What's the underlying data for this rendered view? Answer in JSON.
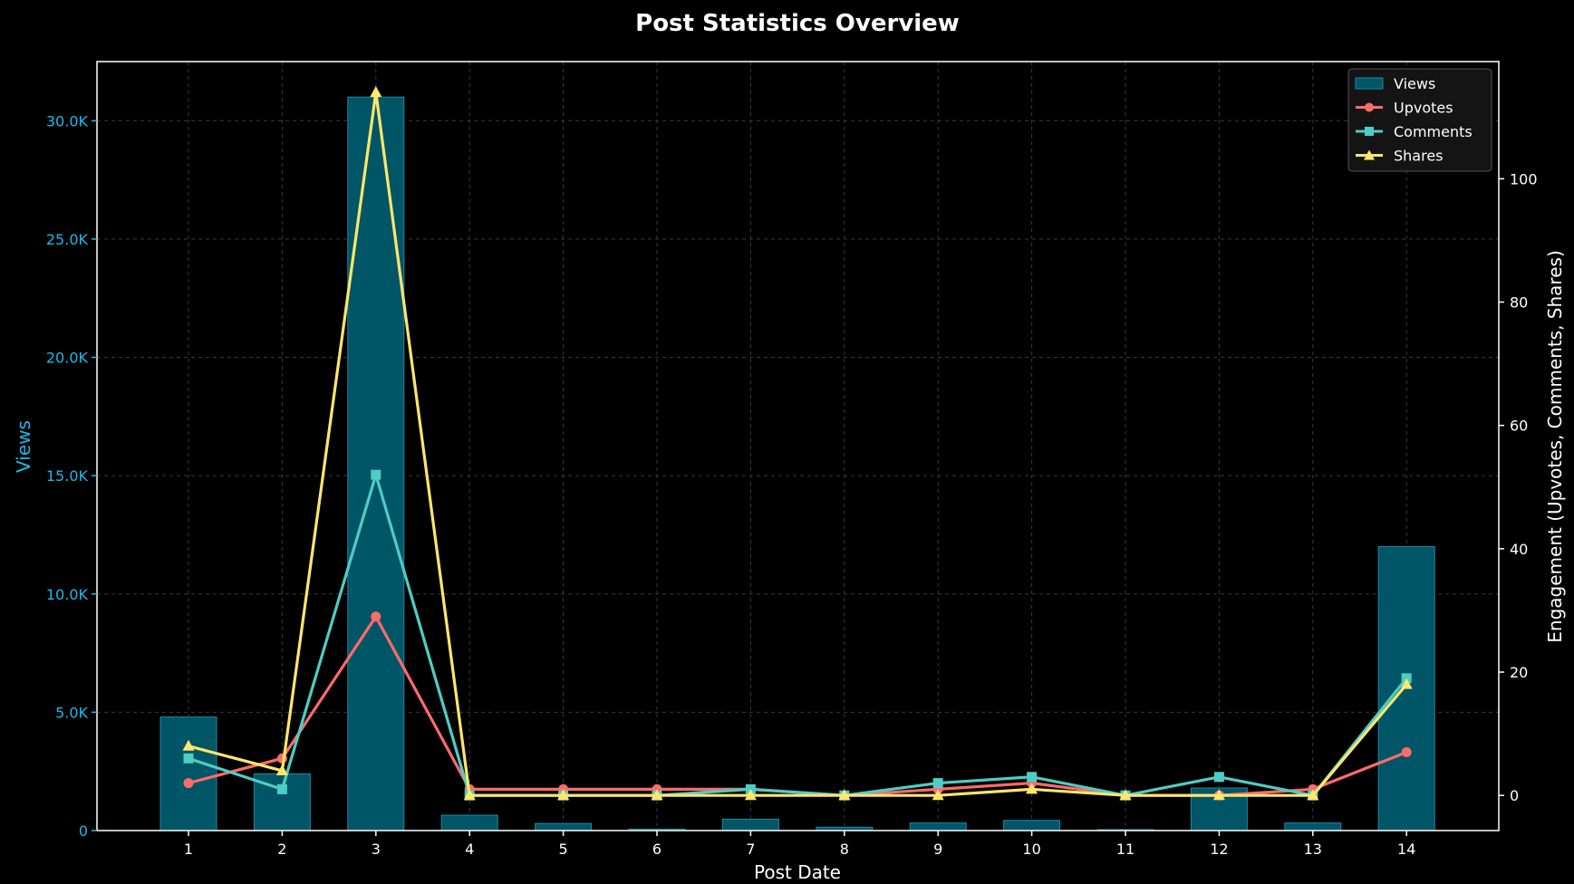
{
  "chart_data": {
    "type": "bar+line",
    "title": "Post Statistics Overview",
    "xlabel": "Post Date",
    "ylabel_left": "Views",
    "ylabel_right": "Engagement (Upvotes, Comments, Shares)",
    "categories": [
      "1",
      "2",
      "3",
      "4",
      "5",
      "6",
      "7",
      "8",
      "9",
      "10",
      "11",
      "12",
      "13",
      "14"
    ],
    "left_axis": {
      "ylim": [
        0,
        32500
      ],
      "ticks": [
        0,
        5000,
        10000,
        15000,
        20000,
        25000,
        30000
      ],
      "tick_labels": [
        "0",
        "5.0K",
        "10.0K",
        "15.0K",
        "20.0K",
        "25.0K",
        "30.0K"
      ]
    },
    "right_axis": {
      "ylim": [
        -5.7,
        119
      ],
      "ticks": [
        0,
        20,
        40,
        60,
        80,
        100
      ],
      "tick_labels": [
        "0",
        "20",
        "40",
        "60",
        "80",
        "100"
      ]
    },
    "bar_series": {
      "name": "Views",
      "color": "#005566",
      "edge_color": "#1b8aa6",
      "values": [
        4800,
        2400,
        31000,
        650,
        300,
        60,
        480,
        140,
        320,
        430,
        40,
        1800,
        320,
        12000
      ]
    },
    "line_series": [
      {
        "name": "Upvotes",
        "color": "#ff6b6b",
        "marker": "circle",
        "values": [
          2,
          6,
          29,
          1,
          1,
          1,
          1,
          0,
          1,
          2,
          0,
          0,
          1,
          7
        ]
      },
      {
        "name": "Comments",
        "color": "#4ecdc4",
        "marker": "square",
        "values": [
          6,
          1,
          52,
          0,
          0,
          0,
          1,
          0,
          2,
          3,
          0,
          3,
          0,
          19
        ]
      },
      {
        "name": "Shares",
        "color": "#ffe66d",
        "marker": "triangle",
        "values": [
          8,
          4,
          114,
          0,
          0,
          0,
          0,
          0,
          0,
          1,
          0,
          0,
          0,
          18
        ]
      }
    ],
    "grid": true,
    "legend_position": "top-right"
  }
}
